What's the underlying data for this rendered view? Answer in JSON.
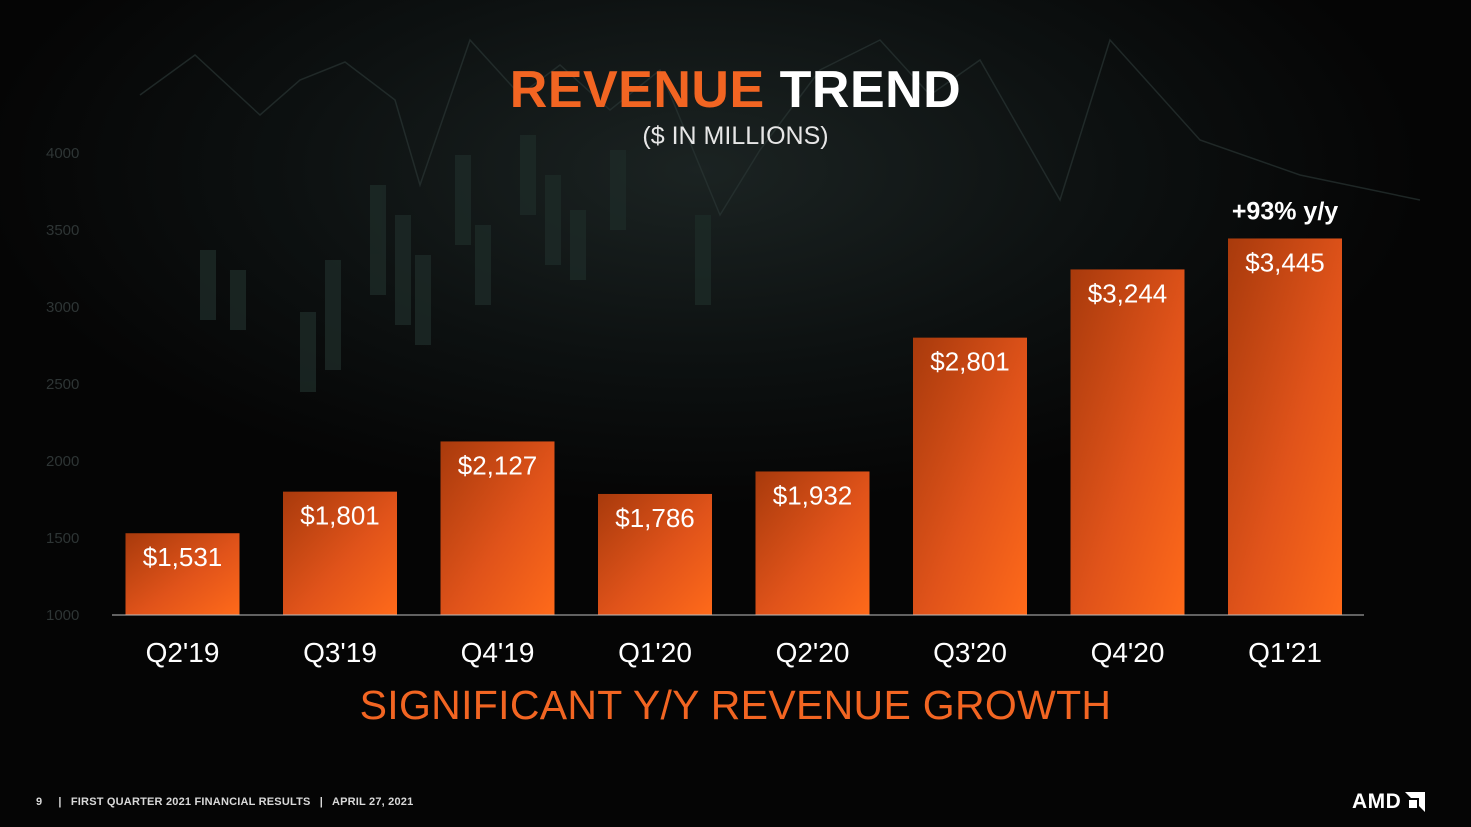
{
  "slide": {
    "title_part1": "REVENUE",
    "title_part2": "TREND",
    "subtitle": "($ IN MILLIONS)",
    "tagline": "SIGNIFICANT Y/Y REVENUE GROWTH",
    "page_number": "9",
    "footer_text": "FIRST QUARTER 2021 FINANCIAL RESULTS",
    "footer_date": "APRIL 27, 2021",
    "logo_text": "AMD",
    "colors": {
      "accent": "#f26522",
      "bar_dark": "#a83a0c",
      "bar_light": "#ff6a1a",
      "background": "#050505"
    }
  },
  "chart_data": {
    "type": "bar",
    "categories": [
      "Q2'19",
      "Q3'19",
      "Q4'19",
      "Q1'20",
      "Q2'20",
      "Q3'20",
      "Q4'20",
      "Q1'21"
    ],
    "values": [
      1531,
      1801,
      2127,
      1786,
      1932,
      2801,
      3244,
      3445
    ],
    "data_labels": [
      "$1,531",
      "$1,801",
      "$2,127",
      "$1,786",
      "$1,932",
      "$2,801",
      "$3,244",
      "$3,445"
    ],
    "yticks": [
      1000,
      1500,
      2000,
      2500,
      3000,
      3500,
      4000
    ],
    "ylim": [
      1000,
      4000
    ],
    "annotation": "+93% y/y",
    "annotation_category": "Q1'21",
    "grid": false,
    "title": "REVENUE TREND",
    "subtitle": "($ IN MILLIONS)"
  }
}
